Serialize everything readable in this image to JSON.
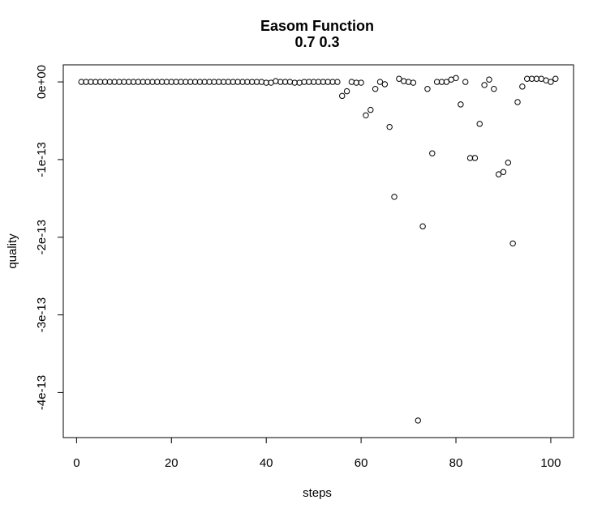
{
  "chart_data": {
    "type": "scatter",
    "title": "Easom Function",
    "subtitle": "0.7 0.3",
    "xlabel": "steps",
    "ylabel": "quality",
    "xlim": [
      -2.8,
      104.8
    ],
    "ylim": [
      -4.58e-13,
      2.2e-14
    ],
    "x_ticks": [
      0,
      20,
      40,
      60,
      80,
      100
    ],
    "x_tick_labels": [
      "0",
      "20",
      "40",
      "60",
      "80",
      "100"
    ],
    "y_ticks": [
      0,
      -1e-13,
      -2e-13,
      -3e-13,
      -4e-13
    ],
    "y_tick_labels": [
      "0e+00",
      "-1e-13",
      "-2e-13",
      "-3e-13",
      "-4e-13"
    ],
    "grid": false,
    "marker": "open-circle",
    "x": [
      1,
      2,
      3,
      4,
      5,
      6,
      7,
      8,
      9,
      10,
      11,
      12,
      13,
      14,
      15,
      16,
      17,
      18,
      19,
      20,
      21,
      22,
      23,
      24,
      25,
      26,
      27,
      28,
      29,
      30,
      31,
      32,
      33,
      34,
      35,
      36,
      37,
      38,
      39,
      40,
      41,
      42,
      43,
      44,
      45,
      46,
      47,
      48,
      49,
      50,
      51,
      52,
      53,
      54,
      55,
      56,
      57,
      58,
      59,
      60,
      61,
      62,
      63,
      64,
      65,
      66,
      67,
      68,
      69,
      70,
      71,
      72,
      73,
      74,
      75,
      76,
      77,
      78,
      79,
      80,
      81,
      82,
      83,
      84,
      85,
      86,
      87,
      88,
      89,
      90,
      91,
      92,
      93,
      94,
      95,
      96,
      97,
      98,
      99,
      100,
      101
    ],
    "y": [
      0,
      0,
      0,
      0,
      0,
      0,
      0,
      0,
      0,
      0,
      0,
      0,
      0,
      0,
      0,
      0,
      0,
      0,
      0,
      0,
      0,
      0,
      0,
      0,
      0,
      0,
      0,
      0,
      0,
      0,
      0,
      0,
      0,
      0,
      0,
      0,
      0,
      0,
      0,
      -1e-15,
      -1e-15,
      1e-15,
      0,
      0,
      0,
      -1e-15,
      -1e-15,
      0,
      0,
      0,
      0,
      0,
      0,
      0,
      0,
      -1.8e-14,
      -1.2e-14,
      0,
      -1e-15,
      -1e-15,
      -4.3e-14,
      -3.6e-14,
      -9e-15,
      0,
      -3e-15,
      -5.8e-14,
      -1.48e-13,
      4e-15,
      1e-15,
      0,
      -1e-15,
      -4.36e-13,
      -1.86e-13,
      -9e-15,
      -9.2e-14,
      0,
      0,
      0,
      3e-15,
      5e-15,
      -2.9e-14,
      0,
      -9.8e-14,
      -9.8e-14,
      -5.4e-14,
      -4e-15,
      3e-15,
      -9e-15,
      -1.19e-13,
      -1.16e-13,
      -1.04e-13,
      -2.08e-13,
      -2.6e-14,
      -6e-15,
      4e-15,
      4e-15,
      4e-15,
      4e-15,
      2e-15,
      0,
      4e-15
    ]
  }
}
